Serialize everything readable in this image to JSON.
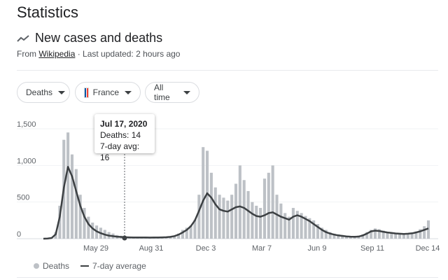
{
  "page": {
    "heading": "Statistics"
  },
  "section": {
    "title": "New cases and deaths",
    "source_prefix": "From ",
    "source_link": "Wikipedia",
    "updated": " · Last updated: 2 hours ago"
  },
  "filters": {
    "metric": "Deaths",
    "country": "France",
    "range": "All time"
  },
  "tooltip": {
    "date": "Jul 17, 2020",
    "deaths": "Deaths: 14",
    "avg": "7-day avg: 16"
  },
  "legend": {
    "bars": "Deaths",
    "line": "7-day average"
  },
  "colors": {
    "bars": "#bdc1c6",
    "line": "#3c4043",
    "flag": [
      "#0055a4",
      "#ffffff",
      "#ef4135"
    ]
  },
  "chart_data": {
    "type": "bar",
    "ylim": [
      0,
      1500
    ],
    "yticks": [
      "0",
      "500",
      "1,000",
      "1,500"
    ],
    "xticks": [
      "May 29",
      "Aug 31",
      "Dec 3",
      "Mar 7",
      "Jun 9",
      "Sep 11",
      "Dec 14"
    ],
    "series": [
      {
        "name": "Deaths",
        "type": "bar",
        "values": [
          0,
          5,
          20,
          90,
          450,
          1350,
          1450,
          1150,
          950,
          600,
          420,
          300,
          220,
          180,
          150,
          120,
          90,
          70,
          50,
          40,
          30,
          25,
          20,
          18,
          16,
          14,
          12,
          14,
          16,
          18,
          20,
          25,
          40,
          70,
          120,
          150,
          180,
          260,
          600,
          1250,
          1200,
          900,
          700,
          600,
          560,
          520,
          600,
          750,
          1000,
          800,
          650,
          500,
          450,
          420,
          820,
          900,
          1000,
          600,
          480,
          350,
          300,
          420,
          380,
          350,
          310,
          280,
          250,
          200,
          150,
          120,
          90,
          70,
          60,
          50,
          40,
          35,
          30,
          40,
          60,
          90,
          120,
          140,
          130,
          110,
          90,
          80,
          70,
          65,
          60,
          70,
          80,
          100,
          130,
          170,
          250
        ]
      },
      {
        "name": "7-day average",
        "type": "line",
        "values": [
          0,
          2,
          10,
          60,
          300,
          700,
          980,
          850,
          650,
          450,
          300,
          200,
          140,
          100,
          75,
          55,
          42,
          34,
          28,
          24,
          20,
          18,
          17,
          16,
          16,
          16,
          15,
          16,
          17,
          18,
          20,
          25,
          35,
          55,
          85,
          120,
          170,
          250,
          380,
          520,
          620,
          560,
          470,
          400,
          380,
          370,
          400,
          430,
          440,
          420,
          380,
          340,
          310,
          300,
          320,
          350,
          360,
          330,
          300,
          280,
          260,
          300,
          320,
          300,
          270,
          240,
          200,
          160,
          120,
          90,
          70,
          55,
          45,
          38,
          32,
          28,
          26,
          30,
          45,
          70,
          100,
          110,
          105,
          95,
          85,
          78,
          72,
          68,
          65,
          68,
          74,
          85,
          100,
          120,
          140
        ]
      }
    ]
  }
}
